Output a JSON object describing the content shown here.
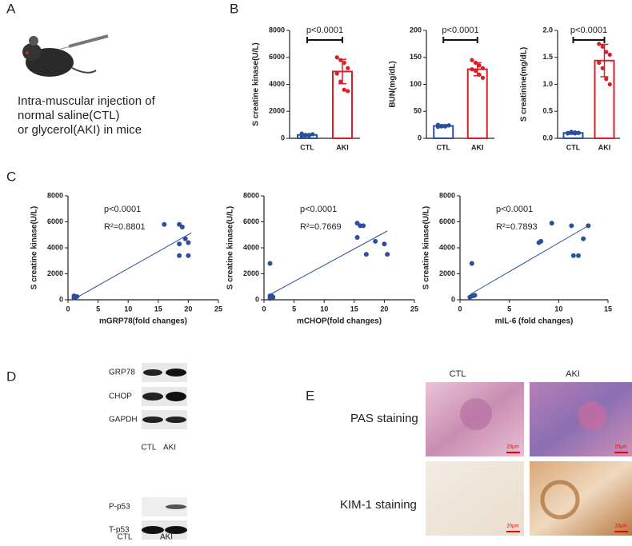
{
  "panels": {
    "a": "A",
    "b": "B",
    "c": "C",
    "d": "D",
    "e": "E"
  },
  "panel_a": {
    "lines": [
      "Intra-muscular injection of",
      "normal saline(CTL)",
      "or glycerol(AKI) in mice"
    ]
  },
  "panel_d": {
    "blots_top": [
      "GRP78",
      "CHOP",
      "GAPDH"
    ],
    "groups_top": [
      "CTL",
      "AKI"
    ],
    "blots_bottom": [
      "P-p53",
      "T-p53"
    ],
    "groups_bottom": [
      "CTL",
      "AKI"
    ]
  },
  "panel_e": {
    "columns": [
      "CTL",
      "AKI"
    ],
    "rows": [
      "PAS staining",
      "KIM-1 staining"
    ],
    "scale_bar": "20μm"
  },
  "chart_data": [
    {
      "type": "bar",
      "ylabel": "S creatine kinase(U/L)",
      "categories": [
        "CTL",
        "AKI"
      ],
      "values": [
        250,
        4950
      ],
      "errors": [
        60,
        900
      ],
      "points": [
        [
          150,
          200,
          250,
          300,
          350,
          250,
          200,
          300
        ],
        [
          6000,
          5800,
          5600,
          5200,
          4800,
          4200,
          3600,
          3500
        ]
      ],
      "annotation": "p<0.0001",
      "colors": [
        "#2b4f9a",
        "#d81f26"
      ],
      "ylim": [
        0,
        8000
      ],
      "yticks": [
        0,
        2000,
        4000,
        6000,
        8000
      ]
    },
    {
      "type": "bar",
      "ylabel": "BUN(mg/dL)",
      "categories": [
        "CTL",
        "AKI"
      ],
      "values": [
        23,
        128
      ],
      "errors": [
        2,
        12
      ],
      "points": [
        [
          21,
          22,
          23,
          24,
          25,
          23,
          22,
          24
        ],
        [
          145,
          140,
          135,
          130,
          128,
          125,
          118,
          112
        ]
      ],
      "annotation": "p<0.0001",
      "colors": [
        "#2b4f9a",
        "#d81f26"
      ],
      "ylim": [
        0,
        200
      ],
      "yticks": [
        0,
        50,
        100,
        150,
        200
      ]
    },
    {
      "type": "bar",
      "ylabel": "S creatinine(mg/dL)",
      "categories": [
        "CTL",
        "AKI"
      ],
      "values": [
        0.1,
        1.44
      ],
      "errors": [
        0.02,
        0.3
      ],
      "points": [
        [
          0.09,
          0.1,
          0.11,
          0.1,
          0.1,
          0.12,
          0.09,
          0.1
        ],
        [
          1.75,
          1.7,
          1.6,
          1.55,
          1.4,
          1.3,
          1.1,
          1.0
        ]
      ],
      "annotation": "p<0.0001",
      "colors": [
        "#2b4f9a",
        "#d81f26"
      ],
      "ylim": [
        0,
        2
      ],
      "yticks": [
        {
          "value": 0,
          "label": "0.0"
        },
        0.5,
        {
          "value": 1,
          "label": "1.0"
        },
        1.5,
        {
          "value": 2,
          "label": "2.0"
        }
      ]
    },
    {
      "type": "scatter",
      "xlabel": "mGRP78(fold changes)",
      "ylabel": "S creatine kinase(U/L)",
      "color": "#2b4f9a",
      "x": [
        1,
        1.2,
        1.5,
        1,
        16,
        18.5,
        19,
        19.5,
        18.5,
        20,
        18.5,
        20
      ],
      "y": [
        300,
        200,
        250,
        150,
        5800,
        5800,
        5600,
        4700,
        4300,
        4400,
        3400,
        3400
      ],
      "fit": {
        "x": [
          1,
          20.5
        ],
        "y": [
          50,
          5150
        ]
      },
      "annotations": [
        "p<0.0001",
        "R²=0.8801"
      ],
      "xlim": [
        0,
        25
      ],
      "xticks": [
        0,
        5,
        10,
        15,
        20,
        25
      ],
      "ylim": [
        0,
        8000
      ],
      "yticks": [
        0,
        2000,
        4000,
        6000,
        8000
      ]
    },
    {
      "type": "scatter",
      "xlabel": "mCHOP(fold changes)",
      "ylabel": "S creatine kinase(U/L)",
      "color": "#2b4f9a",
      "x": [
        1,
        1,
        1.5,
        1,
        1.3,
        15.5,
        16,
        16.5,
        15.5,
        18.5,
        17,
        20,
        20.5
      ],
      "y": [
        2800,
        300,
        200,
        100,
        300,
        5900,
        5700,
        5700,
        4800,
        4500,
        3500,
        4300,
        3500
      ],
      "fit": {
        "x": [
          1,
          20.5
        ],
        "y": [
          400,
          5300
        ]
      },
      "annotations": [
        "p<0.0001",
        "R²=0.7669"
      ],
      "xlim": [
        0,
        25
      ],
      "xticks": [
        0,
        5,
        10,
        15,
        20,
        25
      ],
      "ylim": [
        0,
        8000
      ],
      "yticks": [
        0,
        2000,
        4000,
        6000,
        8000
      ]
    },
    {
      "type": "scatter",
      "xlabel": "mIL-6 (fold changes)",
      "ylabel": "S creatine kinase(U/L)",
      "color": "#2b4f9a",
      "x": [
        1.2,
        1,
        1.3,
        1.5,
        8,
        8.2,
        9.3,
        11.3,
        12.5,
        11.5,
        12,
        13
      ],
      "y": [
        2800,
        200,
        300,
        350,
        4400,
        4500,
        5900,
        5700,
        4700,
        3400,
        3400,
        5700
      ],
      "fit": {
        "x": [
          1,
          13
        ],
        "y": [
          400,
          5700
        ]
      },
      "annotations": [
        "p<0.0001",
        "R²=0.7893"
      ],
      "xlim": [
        0,
        15
      ],
      "xticks": [
        0,
        5,
        10,
        15
      ],
      "ylim": [
        0,
        8000
      ],
      "yticks": [
        0,
        2000,
        4000,
        6000,
        8000
      ]
    }
  ]
}
